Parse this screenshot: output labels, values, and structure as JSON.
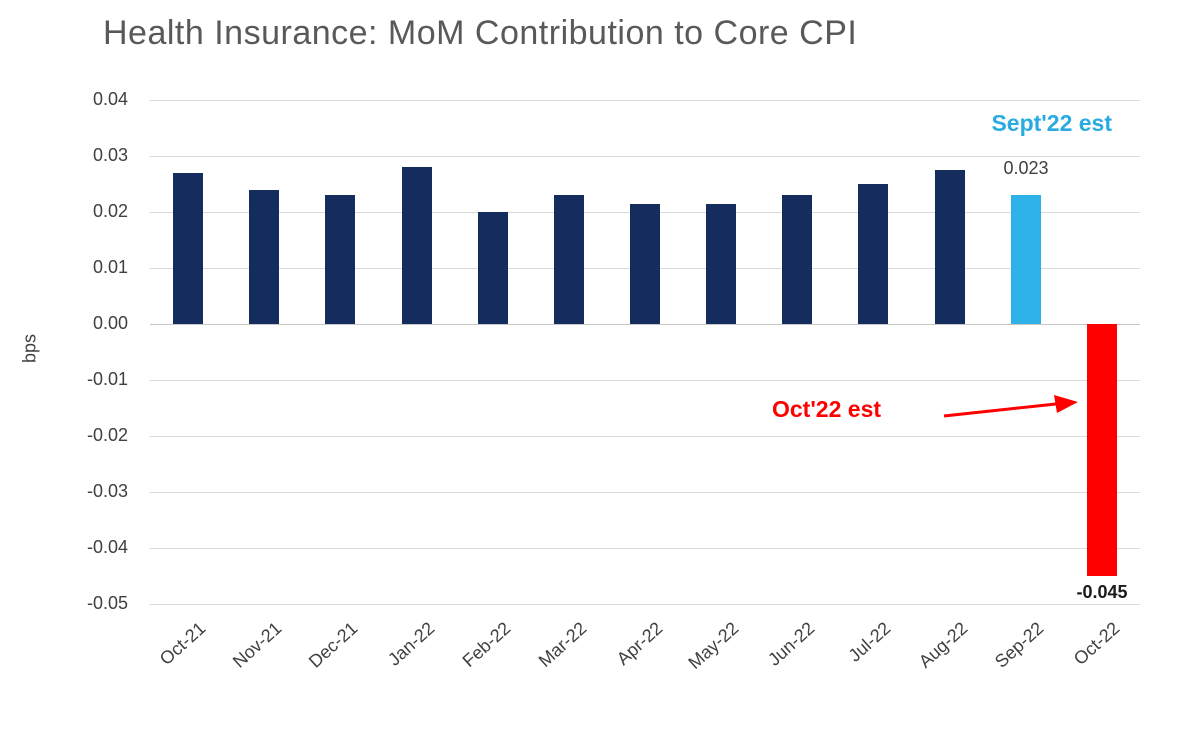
{
  "chart_data": {
    "type": "bar",
    "title": "Health Insurance: MoM Contribution to Core CPI",
    "ylabel": "bps",
    "categories": [
      "Oct-21",
      "Nov-21",
      "Dec-21",
      "Jan-22",
      "Feb-22",
      "Mar-22",
      "Apr-22",
      "May-22",
      "Jun-22",
      "Jul-22",
      "Aug-22",
      "Sep-22",
      "Oct-22"
    ],
    "values": [
      0.027,
      0.024,
      0.023,
      0.028,
      0.02,
      0.023,
      0.0215,
      0.0215,
      0.023,
      0.025,
      0.0275,
      0.023,
      -0.045
    ],
    "bar_colors": [
      "#152c5e",
      "#152c5e",
      "#152c5e",
      "#152c5e",
      "#152c5e",
      "#152c5e",
      "#152c5e",
      "#152c5e",
      "#152c5e",
      "#152c5e",
      "#152c5e",
      "#2eb1e6",
      "#fe0000"
    ],
    "ylim": [
      -0.05,
      0.04
    ],
    "ytick_labels": [
      "0.04",
      "0.03",
      "0.02",
      "0.01",
      "0.00",
      "-0.01",
      "-0.02",
      "-0.03",
      "-0.04",
      "-0.05"
    ],
    "grid": true,
    "legend": "none",
    "data_labels": {
      "sept": "0.023",
      "oct": "-0.045"
    },
    "annotations": [
      {
        "text": "Sept'22 est",
        "color": "#29abe2",
        "target": "Sep-22",
        "arrow": false
      },
      {
        "text": "Oct'22 est",
        "color": "#fe0000",
        "target": "Oct-22",
        "arrow": true
      }
    ]
  }
}
